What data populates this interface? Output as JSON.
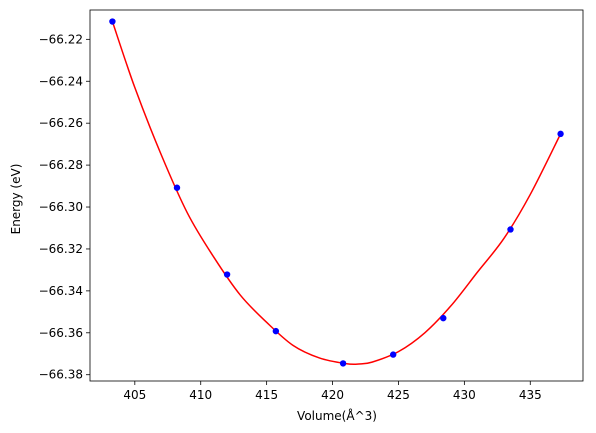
{
  "chart_data": {
    "type": "scatter",
    "xlabel": "Volume(Å^3)",
    "ylabel": "Energy (eV)",
    "xlim": [
      401.6,
      439.0
    ],
    "ylim": [
      -66.383,
      -66.206
    ],
    "xticks": [
      405,
      410,
      415,
      420,
      425,
      430,
      435
    ],
    "yticks": [
      -66.38,
      -66.36,
      -66.34,
      -66.32,
      -66.3,
      -66.28,
      -66.26,
      -66.24,
      -66.22
    ],
    "ytick_labels": [
      "−66.38",
      "−66.36",
      "−66.34",
      "−66.32",
      "−66.30",
      "−66.28",
      "−66.26",
      "−66.24",
      "−66.22"
    ],
    "grid": false,
    "series": [
      {
        "type": "scatter",
        "color": "#0000ff",
        "x": [
          403.3,
          408.2,
          412.0,
          415.7,
          420.8,
          424.6,
          428.4,
          433.5,
          437.3
        ],
        "y": [
          -66.2115,
          -66.2908,
          -66.3322,
          -66.3592,
          -66.3746,
          -66.3704,
          -66.353,
          -66.3107,
          -66.2651
        ]
      },
      {
        "type": "line",
        "color": "#ff0000",
        "x": [
          403.3,
          405.0,
          407.0,
          409.0,
          411.0,
          413.0,
          415.0,
          417.0,
          419.0,
          421.0,
          422.0,
          423.0,
          425.0,
          427.0,
          429.0,
          431.0,
          433.0,
          435.0,
          437.3
        ],
        "y": [
          -66.2115,
          -66.243,
          -66.275,
          -66.303,
          -66.324,
          -66.342,
          -66.355,
          -66.366,
          -66.372,
          -66.3747,
          -66.3749,
          -66.374,
          -66.369,
          -66.36,
          -66.347,
          -66.331,
          -66.315,
          -66.294,
          -66.2651
        ]
      }
    ]
  }
}
